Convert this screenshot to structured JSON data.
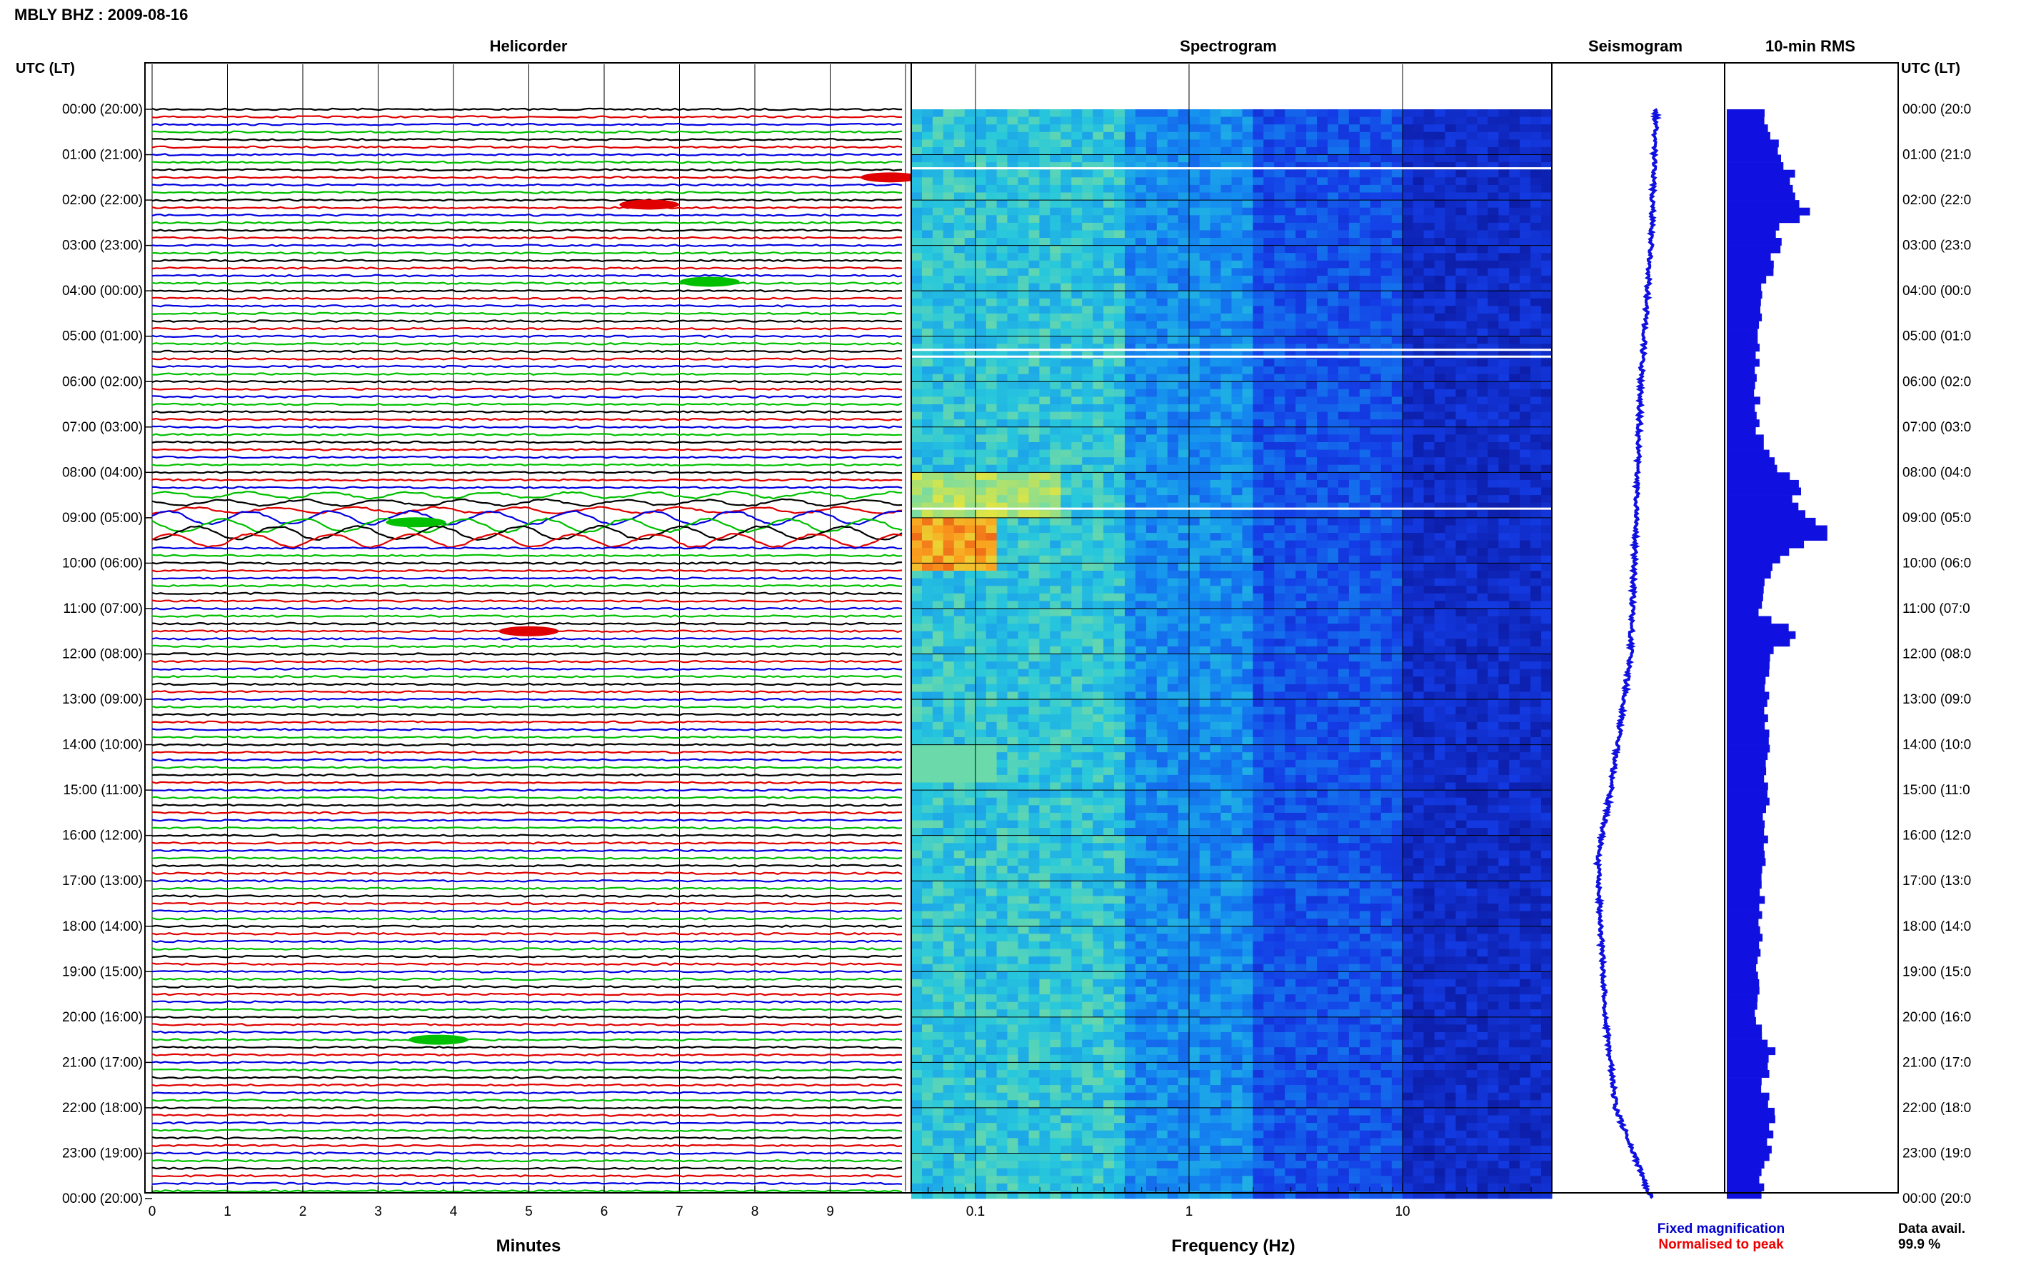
{
  "header": {
    "title": "MBLY BHZ : 2009-08-16"
  },
  "panels": {
    "helicorder": "Helicorder",
    "spectrogram": "Spectrogram",
    "seismogram": "Seismogram",
    "rms": "10-min RMS"
  },
  "axes": {
    "utc_label_left": "UTC (LT)",
    "utc_label_right": "UTC (LT)",
    "minutes_label": "Minutes",
    "frequency_label": "Frequency (Hz)",
    "minute_ticks": [
      "0",
      "1",
      "2",
      "3",
      "4",
      "5",
      "6",
      "7",
      "8",
      "9"
    ],
    "frequency_ticks": [
      "0.1",
      "1",
      "10"
    ],
    "hour_labels": [
      "00:00 (20:00)",
      "01:00 (21:00)",
      "02:00 (22:00)",
      "03:00 (23:00)",
      "04:00 (00:00)",
      "05:00 (01:00)",
      "06:00 (02:00)",
      "07:00 (03:00)",
      "08:00 (04:00)",
      "09:00 (05:00)",
      "10:00 (06:00)",
      "11:00 (07:00)",
      "12:00 (08:00)",
      "13:00 (09:00)",
      "14:00 (10:00)",
      "15:00 (11:00)",
      "16:00 (12:00)",
      "17:00 (13:00)",
      "18:00 (14:00)",
      "19:00 (15:00)",
      "20:00 (16:00)",
      "21:00 (17:00)",
      "22:00 (18:00)",
      "23:00 (19:00)",
      "00:00 (20:00)"
    ],
    "hour_labels_right": [
      "00:00 (20:0",
      "01:00 (21:0",
      "02:00 (22:0",
      "03:00 (23:0",
      "04:00 (00:0",
      "05:00 (01:0",
      "06:00 (02:0",
      "07:00 (03:0",
      "08:00 (04:0",
      "09:00 (05:0",
      "10:00 (06:0",
      "11:00 (07:0",
      "12:00 (08:0",
      "13:00 (09:0",
      "14:00 (10:0",
      "15:00 (11:0",
      "16:00 (12:0",
      "17:00 (13:0",
      "18:00 (14:0",
      "19:00 (15:0",
      "20:00 (16:0",
      "21:00 (17:0",
      "22:00 (18:0",
      "23:00 (19:0",
      "00:00 (20:0"
    ]
  },
  "legend": {
    "fixed": "Fixed magnification",
    "normalised": "Normalised to peak",
    "data_avail_label": "Data avail.",
    "data_avail_value": "99.9 %"
  },
  "colors": {
    "trace_cycle": [
      "#000000",
      "#e00000",
      "#0000e0",
      "#00c000"
    ],
    "seismogram": "#1010e0",
    "rms": "#1010e0",
    "fixed_text": "#0000cc",
    "normalised_text": "#ee0000"
  },
  "chart_data": {
    "type": "heatmap",
    "x_minutes_range": [
      0,
      10
    ],
    "frequency_range_hz": [
      0.05,
      50
    ],
    "frequency_scale": "log",
    "hours": 24,
    "rows_per_hour": 6,
    "rms_profile": [
      {
        "hour": 0.0,
        "value": 0.38
      },
      {
        "hour": 0.5,
        "value": 0.42
      },
      {
        "hour": 0.8,
        "value": 0.55
      },
      {
        "hour": 1.3,
        "value": 0.65
      },
      {
        "hour": 1.7,
        "value": 0.6
      },
      {
        "hour": 2.1,
        "value": 0.85
      },
      {
        "hour": 2.5,
        "value": 0.55
      },
      {
        "hour": 3.0,
        "value": 0.5
      },
      {
        "hour": 4.0,
        "value": 0.35
      },
      {
        "hour": 5.0,
        "value": 0.3
      },
      {
        "hour": 6.0,
        "value": 0.3
      },
      {
        "hour": 7.0,
        "value": 0.32
      },
      {
        "hour": 7.9,
        "value": 0.55
      },
      {
        "hour": 8.2,
        "value": 0.75
      },
      {
        "hour": 8.5,
        "value": 0.6
      },
      {
        "hour": 9.0,
        "value": 0.95
      },
      {
        "hour": 9.3,
        "value": 1.0
      },
      {
        "hour": 9.6,
        "value": 0.7
      },
      {
        "hour": 10.0,
        "value": 0.45
      },
      {
        "hour": 11.0,
        "value": 0.35
      },
      {
        "hour": 11.5,
        "value": 0.7
      },
      {
        "hour": 12.0,
        "value": 0.4
      },
      {
        "hour": 14.0,
        "value": 0.42
      },
      {
        "hour": 16.0,
        "value": 0.38
      },
      {
        "hour": 18.0,
        "value": 0.35
      },
      {
        "hour": 20.0,
        "value": 0.28
      },
      {
        "hour": 20.6,
        "value": 0.45
      },
      {
        "hour": 21.5,
        "value": 0.35
      },
      {
        "hour": 22.0,
        "value": 0.5
      },
      {
        "hour": 23.0,
        "value": 0.4
      },
      {
        "hour": 24.0,
        "value": 0.32
      }
    ],
    "seismogram_drift": [
      {
        "hour": 0.0,
        "offset": 0.7
      },
      {
        "hour": 3.0,
        "offset": 0.65
      },
      {
        "hour": 6.0,
        "offset": 0.55
      },
      {
        "hour": 9.0,
        "offset": 0.5
      },
      {
        "hour": 12.0,
        "offset": 0.45
      },
      {
        "hour": 15.0,
        "offset": 0.25
      },
      {
        "hour": 16.5,
        "offset": 0.12
      },
      {
        "hour": 18.0,
        "offset": 0.15
      },
      {
        "hour": 20.0,
        "offset": 0.2
      },
      {
        "hour": 22.0,
        "offset": 0.3
      },
      {
        "hour": 24.0,
        "offset": 0.65
      }
    ],
    "events": [
      {
        "hour": 1.5,
        "minute": 9.8,
        "color": "red"
      },
      {
        "hour": 2.1,
        "minute": 6.6,
        "color": "red"
      },
      {
        "hour": 3.8,
        "minute": 7.4,
        "color": "green"
      },
      {
        "hour": 9.1,
        "minute": 3.5,
        "color": "green"
      },
      {
        "hour": 11.5,
        "minute": 5.0,
        "color": "red"
      },
      {
        "hour": 20.5,
        "minute": 3.8,
        "color": "green"
      }
    ]
  }
}
